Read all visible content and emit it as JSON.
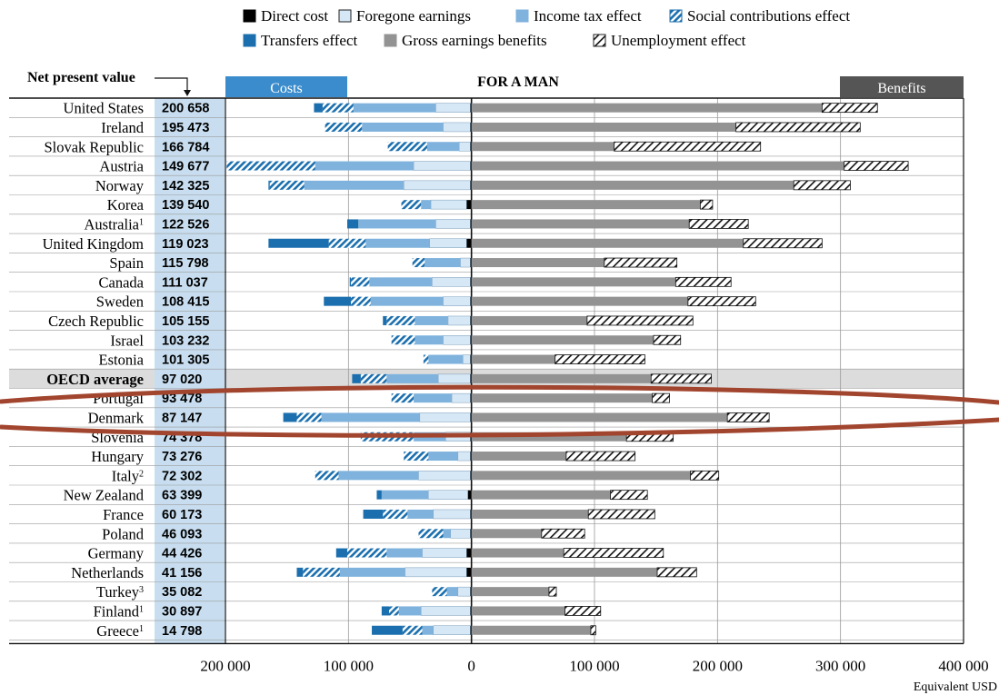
{
  "chart_data": {
    "type": "bar",
    "orientation": "horizontal",
    "stacked": true,
    "title": "FOR A MAN",
    "costs_label": "Costs",
    "benefits_label": "Benefits",
    "npv_label": "Net present value",
    "x_unit_label": "Equivalent USD",
    "xlim": [
      -200000,
      400000
    ],
    "x_ticks": [
      -200000,
      -100000,
      0,
      100000,
      200000,
      300000,
      400000
    ],
    "x_tick_labels": [
      "200 000",
      "100 000",
      "0",
      "100 000",
      "200 000",
      "300 000",
      "400 000"
    ],
    "grid": true,
    "legend_position": "top",
    "legend": [
      {
        "key": "direct",
        "name": "Direct cost",
        "color": "#000000",
        "pattern": "solid"
      },
      {
        "key": "foregone",
        "name": "Foregone earnings",
        "color": "#d6e7f5",
        "pattern": "solid"
      },
      {
        "key": "tax",
        "name": "Income tax effect",
        "color": "#7fb2dc",
        "pattern": "solid"
      },
      {
        "key": "social",
        "name": "Social contributions effect",
        "color": "#1b6fae",
        "pattern": "hatch"
      },
      {
        "key": "transfers",
        "name": "Transfers effect",
        "color": "#1b6fae",
        "pattern": "solid"
      },
      {
        "key": "gross",
        "name": "Gross earnings benefits",
        "color": "#939393",
        "pattern": "solid"
      },
      {
        "key": "unemp",
        "name": "Unemployment effect",
        "color": "#ffffff",
        "pattern": "hatch"
      }
    ],
    "cost_series_order": [
      "direct",
      "foregone",
      "tax",
      "social",
      "transfers"
    ],
    "countries": [
      {
        "name": "United States",
        "sup": "",
        "npv": "200 658",
        "costs": {
          "direct": 1000,
          "foregone": 28000,
          "tax": 67000,
          "social": 25000,
          "transfers": 7000
        },
        "gross": 285000,
        "unemp": 45000
      },
      {
        "name": "Ireland",
        "sup": "",
        "npv": "195 473",
        "costs": {
          "direct": 1000,
          "foregone": 22000,
          "tax": 66000,
          "social": 30000,
          "transfers": 0
        },
        "gross": 215000,
        "unemp": 101000
      },
      {
        "name": "Slovak Republic",
        "sup": "",
        "npv": "166 784",
        "costs": {
          "direct": 1000,
          "foregone": 9000,
          "tax": 26000,
          "social": 32000,
          "transfers": 0
        },
        "gross": 116000,
        "unemp": 119000
      },
      {
        "name": "Austria",
        "sup": "",
        "npv": "149 677",
        "costs": {
          "direct": 1000,
          "foregone": 46000,
          "tax": 80000,
          "social": 72000,
          "transfers": 0
        },
        "gross": 303000,
        "unemp": 52000
      },
      {
        "name": "Norway",
        "sup": "",
        "npv": "142 325",
        "costs": {
          "direct": 1000,
          "foregone": 54000,
          "tax": 81000,
          "social": 28000,
          "transfers": 1000
        },
        "gross": 262000,
        "unemp": 46000
      },
      {
        "name": "Korea",
        "sup": "",
        "npv": "139 540",
        "costs": {
          "direct": 4000,
          "foregone": 29000,
          "tax": 8000,
          "social": 16000,
          "transfers": 0
        },
        "gross": 186000,
        "unemp": 10000
      },
      {
        "name": "Australia",
        "sup": "1",
        "npv": "122 526",
        "costs": {
          "direct": 1000,
          "foregone": 28000,
          "tax": 63000,
          "social": 0,
          "transfers": 9000
        },
        "gross": 177000,
        "unemp": 48000
      },
      {
        "name": "United Kingdom",
        "sup": "",
        "npv": "119 023",
        "costs": {
          "direct": 4000,
          "foregone": 30000,
          "tax": 52000,
          "social": 30000,
          "transfers": 49000
        },
        "gross": 221000,
        "unemp": 64000
      },
      {
        "name": "Spain",
        "sup": "",
        "npv": "115 798",
        "costs": {
          "direct": 1000,
          "foregone": 8000,
          "tax": 29000,
          "social": 10000,
          "transfers": 0
        },
        "gross": 108000,
        "unemp": 59000
      },
      {
        "name": "Canada",
        "sup": "",
        "npv": "111 037",
        "costs": {
          "direct": 1000,
          "foregone": 31000,
          "tax": 51000,
          "social": 15000,
          "transfers": 1000
        },
        "gross": 166000,
        "unemp": 45000
      },
      {
        "name": "Sweden",
        "sup": "",
        "npv": "108 415",
        "costs": {
          "direct": 1000,
          "foregone": 22000,
          "tax": 59000,
          "social": 16000,
          "transfers": 22000
        },
        "gross": 176000,
        "unemp": 55000
      },
      {
        "name": "Czech Republic",
        "sup": "",
        "npv": "105 155",
        "costs": {
          "direct": 1000,
          "foregone": 18000,
          "tax": 27000,
          "social": 23000,
          "transfers": 3000
        },
        "gross": 94000,
        "unemp": 86000
      },
      {
        "name": "Israel",
        "sup": "",
        "npv": "103 232",
        "costs": {
          "direct": 1000,
          "foregone": 22000,
          "tax": 23000,
          "social": 19000,
          "transfers": 0
        },
        "gross": 148000,
        "unemp": 22000
      },
      {
        "name": "Estonia",
        "sup": "",
        "npv": "101 305",
        "costs": {
          "direct": 1000,
          "foregone": 6000,
          "tax": 28000,
          "social": 4000,
          "transfers": 0
        },
        "gross": 68000,
        "unemp": 73000
      },
      {
        "name": "OECD average",
        "sup": "",
        "npv": "97 020",
        "highlight": true,
        "costs": {
          "direct": 1000,
          "foregone": 26000,
          "tax": 42000,
          "social": 21000,
          "transfers": 7000
        },
        "gross": 146000,
        "unemp": 49000
      },
      {
        "name": "Portugal",
        "sup": "",
        "npv": "93 478",
        "costs": {
          "direct": 1000,
          "foregone": 15000,
          "tax": 31000,
          "social": 18000,
          "transfers": 0
        },
        "gross": 147000,
        "unemp": 14000
      },
      {
        "name": "Denmark",
        "sup": "",
        "npv": "87 147",
        "costs": {
          "direct": 1000,
          "foregone": 41000,
          "tax": 80000,
          "social": 20000,
          "transfers": 11000
        },
        "gross": 208000,
        "unemp": 34000
      },
      {
        "name": "Slovenia",
        "sup": "",
        "npv": "74 378",
        "costs": {
          "direct": 1000,
          "foregone": 20000,
          "tax": 26000,
          "social": 43000,
          "transfers": 0
        },
        "gross": 126000,
        "unemp": 38000
      },
      {
        "name": "Hungary",
        "sup": "",
        "npv": "73 276",
        "costs": {
          "direct": 1000,
          "foregone": 10000,
          "tax": 24000,
          "social": 20000,
          "transfers": 0
        },
        "gross": 77000,
        "unemp": 56000
      },
      {
        "name": "Italy",
        "sup": "2",
        "npv": "72 302",
        "costs": {
          "direct": 1000,
          "foregone": 42000,
          "tax": 65000,
          "social": 19000,
          "transfers": 0
        },
        "gross": 178000,
        "unemp": 23000
      },
      {
        "name": "New Zealand",
        "sup": "",
        "npv": "63 399",
        "costs": {
          "direct": 3000,
          "foregone": 32000,
          "tax": 38000,
          "social": 0,
          "transfers": 4000
        },
        "gross": 113000,
        "unemp": 30000
      },
      {
        "name": "France",
        "sup": "",
        "npv": "60 173",
        "costs": {
          "direct": 1000,
          "foregone": 30000,
          "tax": 21000,
          "social": 20000,
          "transfers": 16000
        },
        "gross": 95000,
        "unemp": 54000
      },
      {
        "name": "Poland",
        "sup": "",
        "npv": "46 093",
        "costs": {
          "direct": 1000,
          "foregone": 16000,
          "tax": 6000,
          "social": 20000,
          "transfers": 0
        },
        "gross": 57000,
        "unemp": 35000
      },
      {
        "name": "Germany",
        "sup": "",
        "npv": "44 426",
        "costs": {
          "direct": 4000,
          "foregone": 36000,
          "tax": 29000,
          "social": 32000,
          "transfers": 9000
        },
        "gross": 75000,
        "unemp": 81000
      },
      {
        "name": "Netherlands",
        "sup": "",
        "npv": "41 156",
        "costs": {
          "direct": 4000,
          "foregone": 50000,
          "tax": 53000,
          "social": 30000,
          "transfers": 5000
        },
        "gross": 151000,
        "unemp": 32000
      },
      {
        "name": "Turkey",
        "sup": "3",
        "npv": "35 082",
        "costs": {
          "direct": 1000,
          "foregone": 10000,
          "tax": 9000,
          "social": 12000,
          "transfers": 0
        },
        "gross": 63000,
        "unemp": 6000
      },
      {
        "name": "Finland",
        "sup": "1",
        "npv": "30 897",
        "costs": {
          "direct": 1000,
          "foregone": 40000,
          "tax": 18000,
          "social": 8000,
          "transfers": 6000
        },
        "gross": 76000,
        "unemp": 29000
      },
      {
        "name": "Greece",
        "sup": "1",
        "npv": "14 798",
        "costs": {
          "direct": 1000,
          "foregone": 30000,
          "tax": 9000,
          "social": 16000,
          "transfers": 25000
        },
        "gross": 97000,
        "unemp": 4000
      }
    ]
  }
}
